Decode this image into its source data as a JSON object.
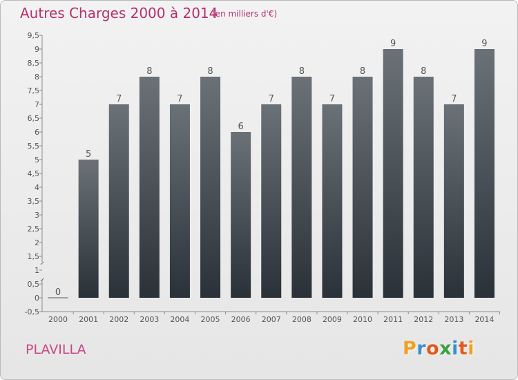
{
  "header": {
    "title": "Autres Charges 2000 à 2014",
    "subtitle": "(en milliers d'€)"
  },
  "footer": {
    "commune": "PLAVILLA",
    "logo_text": "Proxiti"
  },
  "colors": {
    "title": "#b5306e",
    "bar_top": "#6a7177",
    "bar_bottom": "#2a3138",
    "logo_letters": [
      "#f0a020",
      "#3a8fcc",
      "#e05a1c",
      "#3aa040",
      "#3a8fcc",
      "#e05a1c",
      "#f0a020"
    ]
  },
  "chart_data": {
    "type": "bar",
    "categories": [
      "2000",
      "2001",
      "2002",
      "2003",
      "2004",
      "2005",
      "2006",
      "2007",
      "2008",
      "2009",
      "2010",
      "2011",
      "2012",
      "2013",
      "2014"
    ],
    "values": [
      0,
      5,
      7,
      8,
      7,
      8,
      6,
      7,
      8,
      7,
      8,
      9,
      8,
      7,
      9
    ],
    "data_labels": [
      "0",
      "5",
      "7",
      "8",
      "7",
      "8",
      "6",
      "7",
      "8",
      "7",
      "8",
      "9",
      "8",
      "7",
      "9"
    ],
    "y_ticks": [
      "-0,5",
      "0",
      "0,5",
      "1",
      "1,5",
      "2",
      "2,5",
      "3",
      "3,5",
      "4",
      "4,5",
      "5",
      "5,5",
      "6",
      "6,5",
      "7",
      "7,5",
      "8",
      "8,5",
      "9",
      "9,5"
    ],
    "ylim": [
      -0.5,
      9.5
    ],
    "axis_break_between": [
      0.5,
      1.5
    ],
    "grid": false,
    "xlabel": "",
    "ylabel": ""
  }
}
